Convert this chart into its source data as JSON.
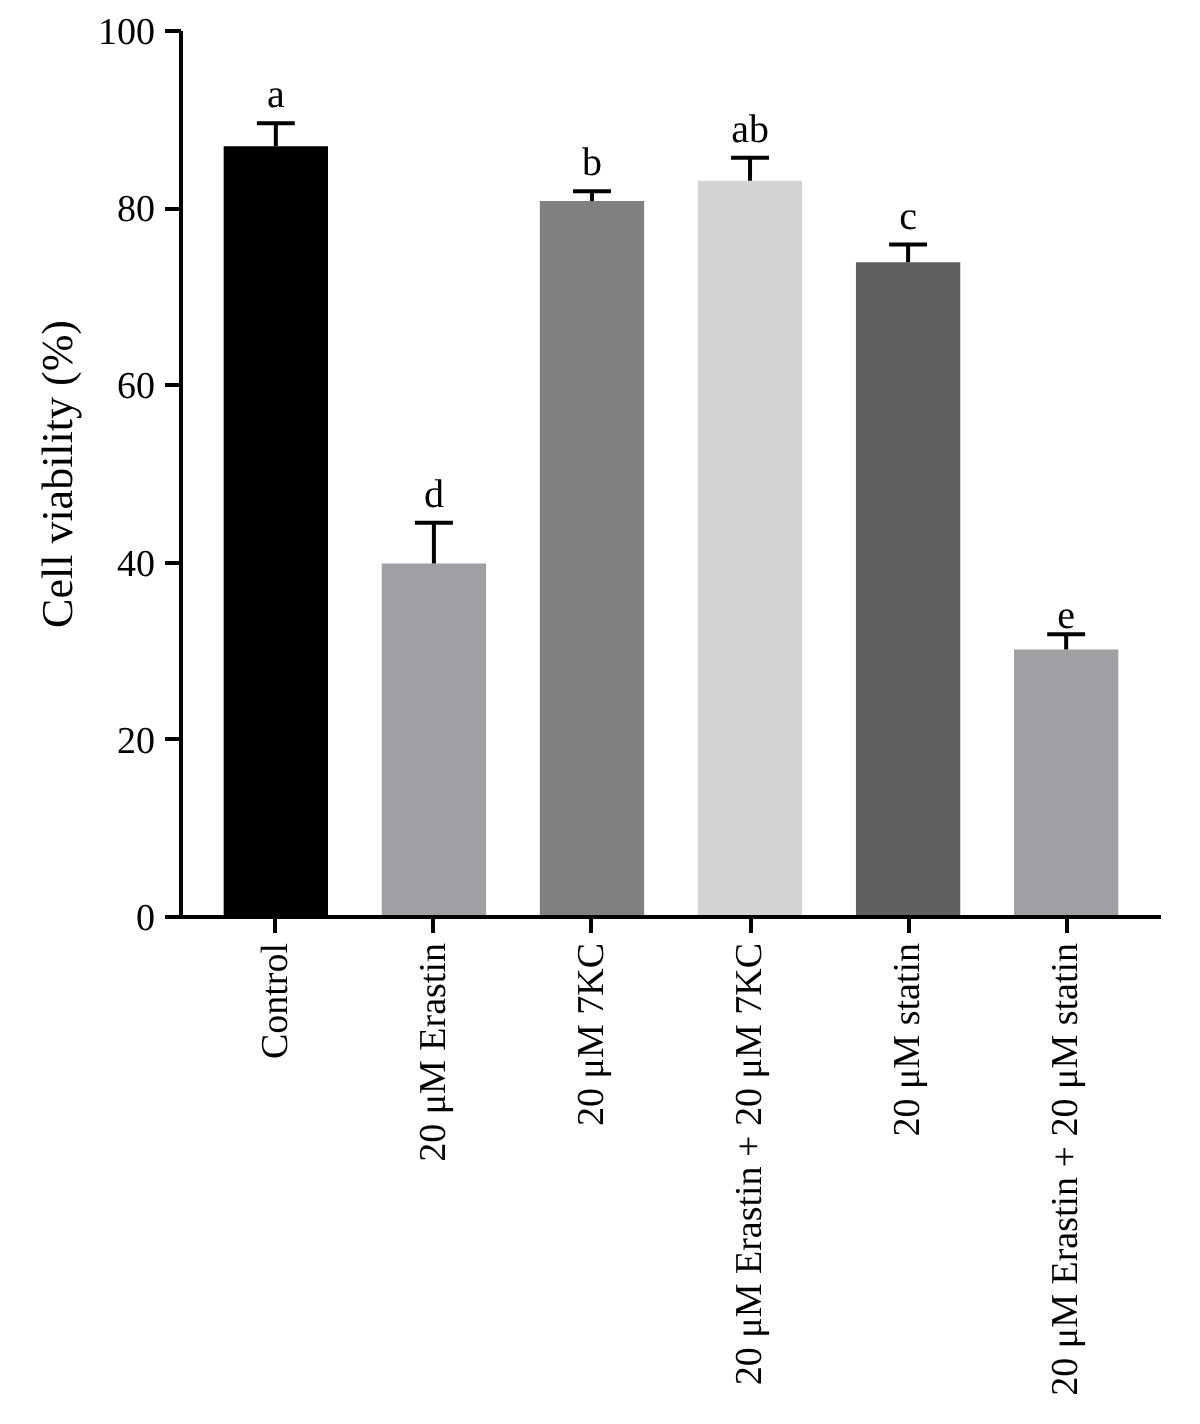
{
  "chart_data": {
    "type": "bar",
    "ylabel": "Cell viability (%)",
    "categories": [
      "Control",
      "20 μM Erastin",
      "20 μM 7KC",
      "20 μM Erastin + 20 μM 7KC",
      "20 μM statin",
      "20 μM Erastin + 20 μM statin"
    ],
    "values": [
      87.0,
      39.9,
      80.8,
      83.1,
      73.9,
      30.2
    ],
    "errors": [
      [
        87.0,
        89.6
      ],
      [
        39.9,
        44.5
      ],
      [
        80.8,
        81.9
      ],
      [
        83.1,
        85.7
      ],
      [
        73.9,
        75.9
      ],
      [
        30.2,
        31.9
      ]
    ],
    "colors": [
      "#000000",
      "#a0a0a4",
      "#808080",
      "#d4d4d4",
      "#606060",
      "#a0a0a4"
    ],
    "ylim": [
      0,
      100
    ],
    "yticks": [
      0,
      20,
      40,
      60,
      80,
      100
    ],
    "grid": false,
    "annotations": [
      {
        "text": "a",
        "x": "Control",
        "y": 89.6
      },
      {
        "text": "d",
        "x": "20 μM Erastin",
        "y": 44.5
      },
      {
        "text": "b",
        "x": "20 μM 7KC",
        "y": 81.9
      },
      {
        "text": "ab",
        "x": "20 μM Erastin + 20 μM 7KC",
        "y": 85.7
      },
      {
        "text": "c",
        "x": "20 μM statin",
        "y": 75.9
      },
      {
        "text": "e",
        "x": "20 μM Erastin + 20 μM statin",
        "y": 31.9
      }
    ]
  }
}
